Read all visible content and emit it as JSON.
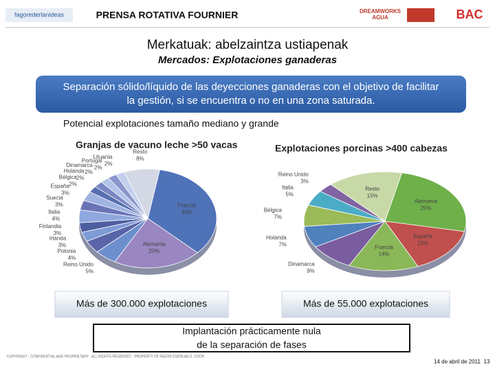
{
  "header": {
    "logo": "fagorederlanideas",
    "project": "PRENSA ROTATIVA FOURNIER",
    "partner_1": "DREAMWORKS",
    "partner_1b": "AGUA",
    "partner_2": "BAC"
  },
  "title": "Merkatuak: abelzaintza ustiapenak",
  "subtitle": "Mercados: Explotaciones ganaderas",
  "banner": {
    "lines": [
      "Separación sólido/líquido de las deyecciones ganaderas con el objetivo de facilitar",
      "la gestión, si se encuentra o no en una zona saturada."
    ]
  },
  "section": "Potencial explotaciones tamaño mediano y grande",
  "chart_data": [
    {
      "type": "pie",
      "title": "Granjas de vacuno leche >50 vacas",
      "categories": [
        "Francia",
        "Alemania",
        "Reino Unido",
        "Polonia",
        "Irlanda",
        "Finlandia",
        "Italia",
        "Suecia",
        "España",
        "Bélgica",
        "Holanda",
        "Dinamarca",
        "Portugal",
        "Lituania",
        "Resto"
      ],
      "values": [
        33,
        20,
        5,
        4,
        3,
        3,
        4,
        3,
        3,
        2,
        2,
        2,
        2,
        2,
        8
      ],
      "value_labels": [
        "33%",
        "20%",
        "5%",
        "4%",
        "3%",
        "3%",
        "4%",
        "3%",
        "3%",
        "2%",
        "2%",
        "2%",
        "2%",
        "2%",
        "8%"
      ],
      "colors": [
        "#4f72b8",
        "#9a86c0",
        "#6d8fce",
        "#5a64a8",
        "#7d9bd6",
        "#4d5d9f",
        "#8fa8de",
        "#6a74b6",
        "#a0b4e2",
        "#5670b0",
        "#7b86c4",
        "#b2c2e8",
        "#8a96cc",
        "#c3cfee",
        "#d4d8e4"
      ]
    },
    {
      "type": "pie",
      "title": "Explotaciones porcinas >400 cabezas",
      "categories": [
        "Alemania",
        "España",
        "Francia",
        "Dinamarca",
        "Holanda",
        "Bélgica",
        "Italia",
        "Reino Unido",
        "Resto"
      ],
      "values": [
        25,
        15,
        14,
        9,
        7,
        7,
        5,
        3,
        15
      ],
      "value_labels": [
        "25%",
        "15%",
        "14%",
        "9%",
        "7%",
        "7%",
        "5%",
        "3%",
        "15%"
      ],
      "colors": [
        "#6fb04a",
        "#c0504d",
        "#8ab858",
        "#7a5d9f",
        "#4f81bd",
        "#9bbb59",
        "#4bacc6",
        "#8064a2",
        "#c8d9a8"
      ]
    }
  ],
  "counts": [
    "Más de 300.000 explotaciones",
    "Más de 55.000 explotaciones"
  ],
  "conclusion": {
    "lines": [
      "Implantación prácticamente nula",
      "de la separación de fases"
    ]
  },
  "footer": {
    "legal": "COPYRIGHT - CONFIDENTIAL AND PROPRIETARY - ALL RIGHTS RESERVED - PROPERTY OF FAGOR EDERLAN S. COOP.",
    "date": "14 de abril de 2011",
    "page": "13"
  }
}
